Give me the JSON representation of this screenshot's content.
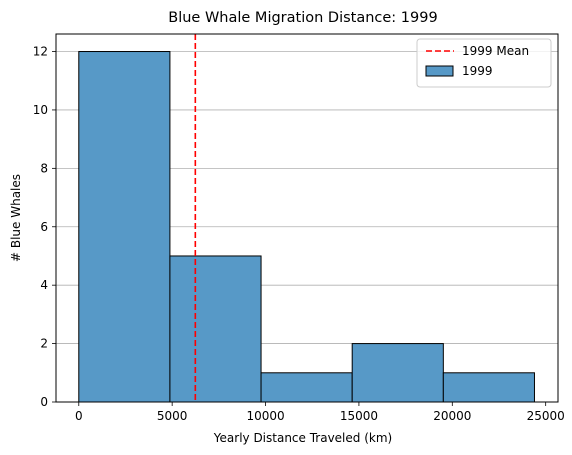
{
  "chart_data": {
    "type": "bar",
    "title": "Blue Whale Migration Distance: 1999",
    "xlabel": "Yearly Distance Traveled (km)",
    "ylabel": "# Blue Whales",
    "xlim": [
      -1220,
      25660
    ],
    "ylim": [
      0,
      12.6
    ],
    "xticks": [
      0,
      5000,
      10000,
      15000,
      20000,
      25000
    ],
    "yticks": [
      0,
      2,
      4,
      6,
      8,
      10,
      12
    ],
    "grid": "y",
    "legend_placement": "top-right",
    "bins": [
      {
        "start": 0,
        "end": 4880,
        "count": 12
      },
      {
        "start": 4880,
        "end": 9760,
        "count": 5
      },
      {
        "start": 9760,
        "end": 14640,
        "count": 1
      },
      {
        "start": 14640,
        "end": 19520,
        "count": 2
      },
      {
        "start": 19520,
        "end": 24400,
        "count": 1
      }
    ],
    "mean": 6240,
    "series": [
      {
        "name": "1999 Mean",
        "kind": "mean-line",
        "color": "#ff0000"
      },
      {
        "name": "1999",
        "kind": "histogram",
        "color": "#5799c7"
      }
    ]
  }
}
